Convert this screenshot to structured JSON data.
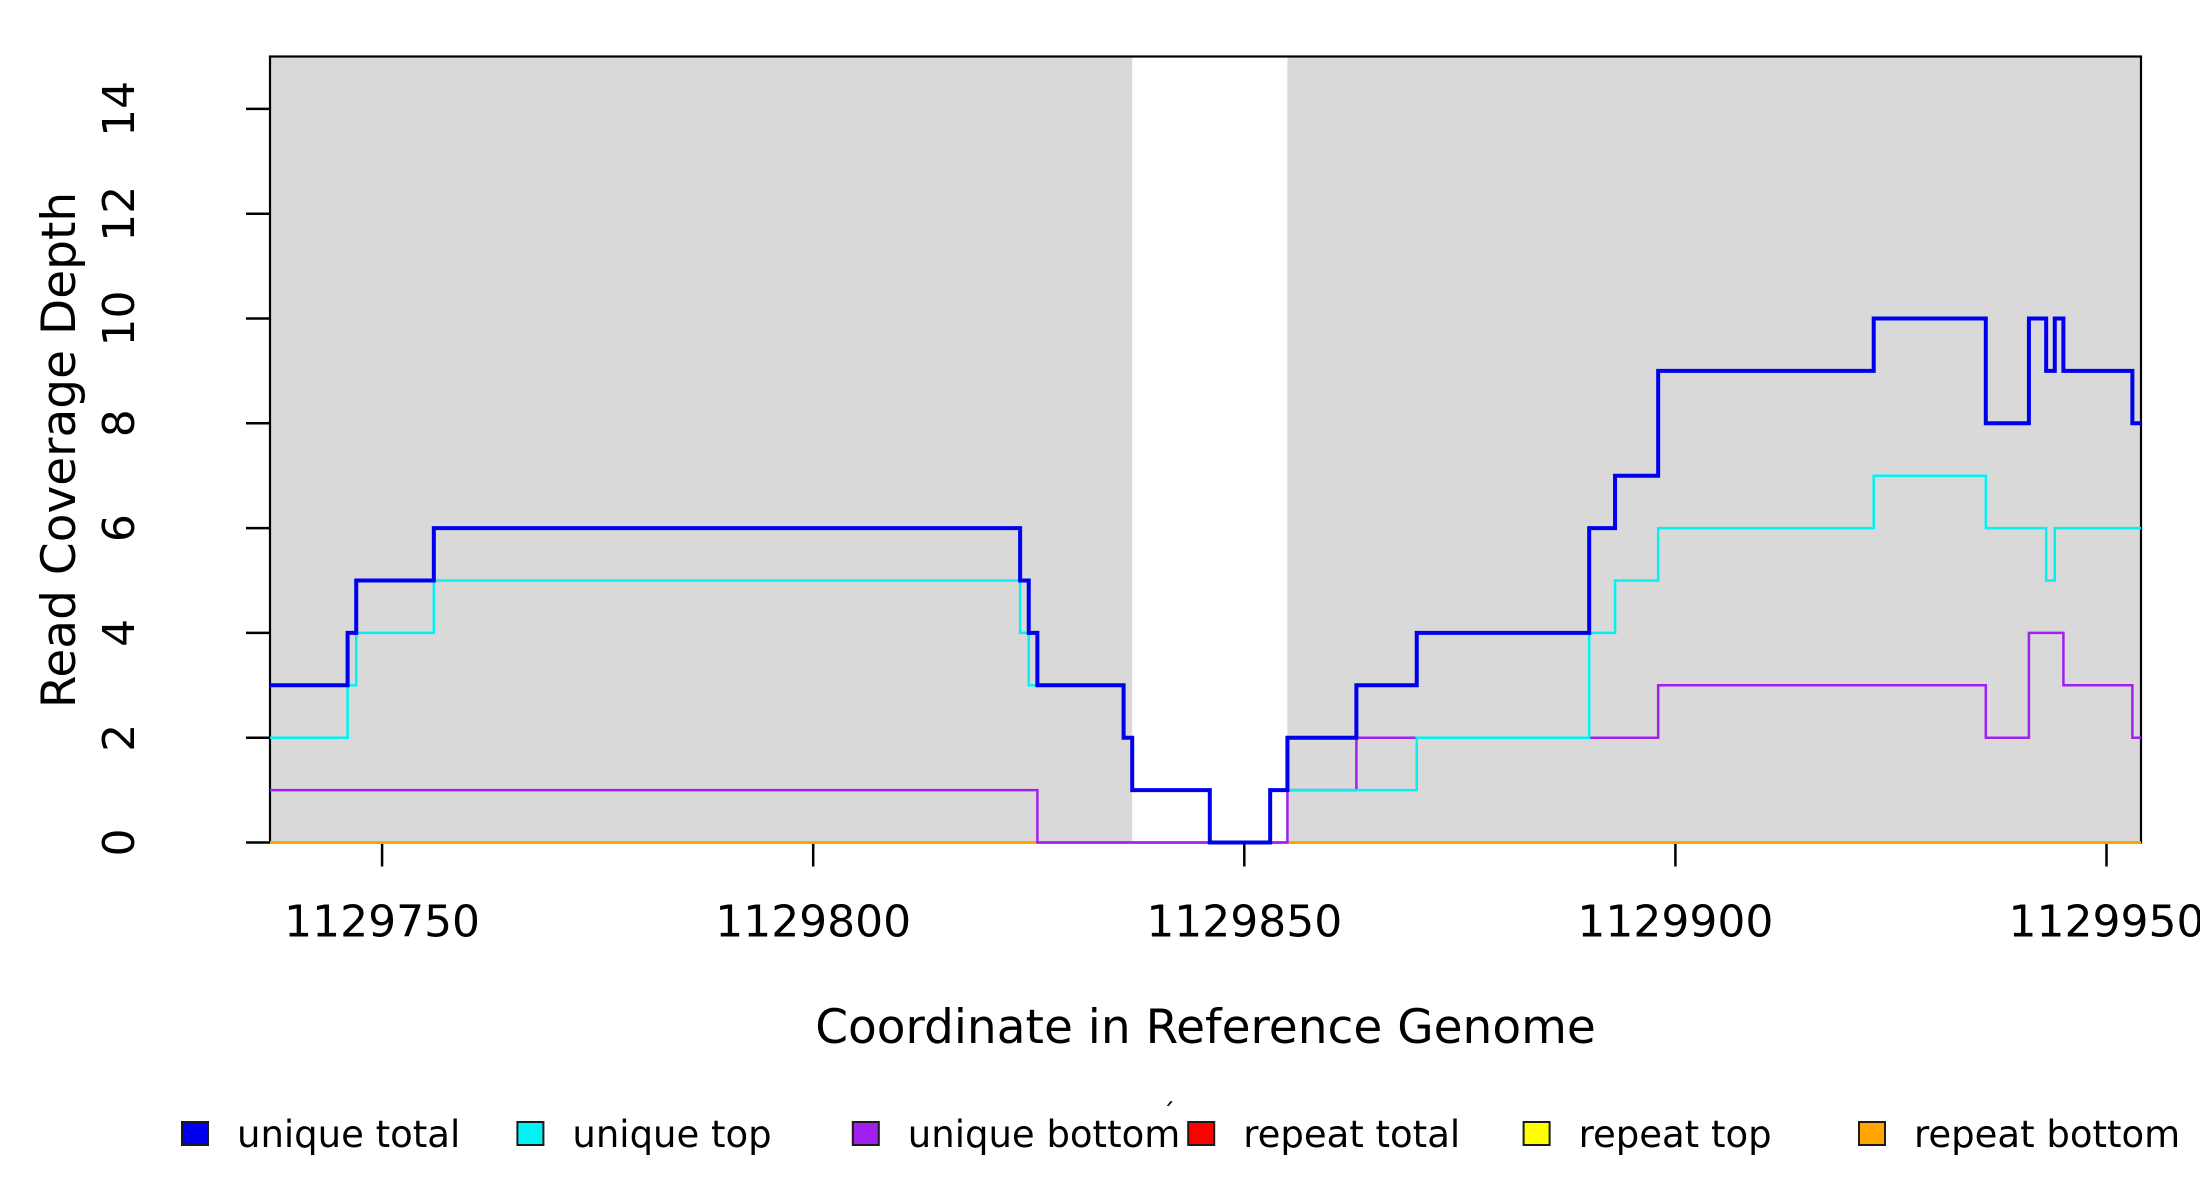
{
  "chart_data": {
    "type": "line",
    "subtype": "step-post-coverage",
    "title": "",
    "xlabel": "Coordinate in Reference Genome",
    "ylabel": "Read Coverage Depth",
    "xlim": [
      1129737,
      1129954
    ],
    "ylim": [
      0,
      15
    ],
    "x_ticks": [
      1129750,
      1129800,
      1129850,
      1129900,
      1129950
    ],
    "y_ticks": [
      0,
      2,
      4,
      6,
      8,
      10,
      12,
      14
    ],
    "grid": false,
    "background_color": "#ffffff",
    "shaded_regions": [
      {
        "name": "gray-region-left",
        "x0": 1129737,
        "x1": 1129837,
        "color": "#d9d9d9"
      },
      {
        "name": "gray-region-right",
        "x0": 1129855,
        "x1": 1129954,
        "color": "#d9d9d9"
      }
    ],
    "series": [
      {
        "name": "repeat total",
        "color": "#ff0000",
        "width": 2,
        "points": [
          [
            1129737,
            0
          ]
        ]
      },
      {
        "name": "repeat top",
        "color": "#ffff00",
        "width": 2,
        "points": [
          [
            1129737,
            0
          ]
        ]
      },
      {
        "name": "repeat bottom",
        "color": "#ffa500",
        "width": 3,
        "points": [
          [
            1129737,
            0
          ]
        ]
      },
      {
        "name": "unique bottom",
        "color": "#a020f0",
        "width": 2.5,
        "points": [
          [
            1129737,
            1
          ],
          [
            1129826,
            0
          ],
          [
            1129855,
            1
          ],
          [
            1129863,
            2
          ],
          [
            1129898,
            3
          ],
          [
            1129936,
            2
          ],
          [
            1129941,
            4
          ],
          [
            1129945,
            3
          ],
          [
            1129953,
            2
          ]
        ]
      },
      {
        "name": "unique top",
        "color": "#00f2f2",
        "width": 2.5,
        "points": [
          [
            1129737,
            2
          ],
          [
            1129746,
            3
          ],
          [
            1129747,
            4
          ],
          [
            1129756,
            5
          ],
          [
            1129824,
            4
          ],
          [
            1129825,
            3
          ],
          [
            1129836,
            2
          ],
          [
            1129837,
            1
          ],
          [
            1129846,
            0
          ],
          [
            1129853,
            1
          ],
          [
            1129870,
            2
          ],
          [
            1129890,
            4
          ],
          [
            1129893,
            5
          ],
          [
            1129898,
            6
          ],
          [
            1129923,
            7
          ],
          [
            1129936,
            6
          ],
          [
            1129943,
            5
          ],
          [
            1129944,
            6
          ]
        ]
      },
      {
        "name": "unique total",
        "color": "#0000ee",
        "width": 4,
        "points": [
          [
            1129737,
            3
          ],
          [
            1129746,
            4
          ],
          [
            1129747,
            5
          ],
          [
            1129756,
            6
          ],
          [
            1129824,
            5
          ],
          [
            1129825,
            4
          ],
          [
            1129826,
            3
          ],
          [
            1129836,
            2
          ],
          [
            1129837,
            1
          ],
          [
            1129846,
            0
          ],
          [
            1129853,
            1
          ],
          [
            1129855,
            2
          ],
          [
            1129863,
            3
          ],
          [
            1129870,
            4
          ],
          [
            1129890,
            6
          ],
          [
            1129893,
            7
          ],
          [
            1129898,
            9
          ],
          [
            1129923,
            10
          ],
          [
            1129936,
            8
          ],
          [
            1129941,
            10
          ],
          [
            1129943,
            9
          ],
          [
            1129944,
            10
          ],
          [
            1129945,
            9
          ],
          [
            1129953,
            8
          ]
        ]
      }
    ],
    "legend": {
      "position": "bottom",
      "entries": [
        {
          "label": "unique total",
          "color": "#0000ee"
        },
        {
          "label": "unique top",
          "color": "#00f2f2"
        },
        {
          "label": "unique bottom",
          "color": "#a020f0"
        },
        {
          "label": "repeat total",
          "color": "#ff0000"
        },
        {
          "label": "repeat top",
          "color": "#ffff00"
        },
        {
          "label": "repeat bottom",
          "color": "#ffa500"
        }
      ]
    },
    "axis_color": "#000000",
    "stray_mark": {
      "glyph": "´",
      "x": 1162,
      "y": 1122
    }
  }
}
